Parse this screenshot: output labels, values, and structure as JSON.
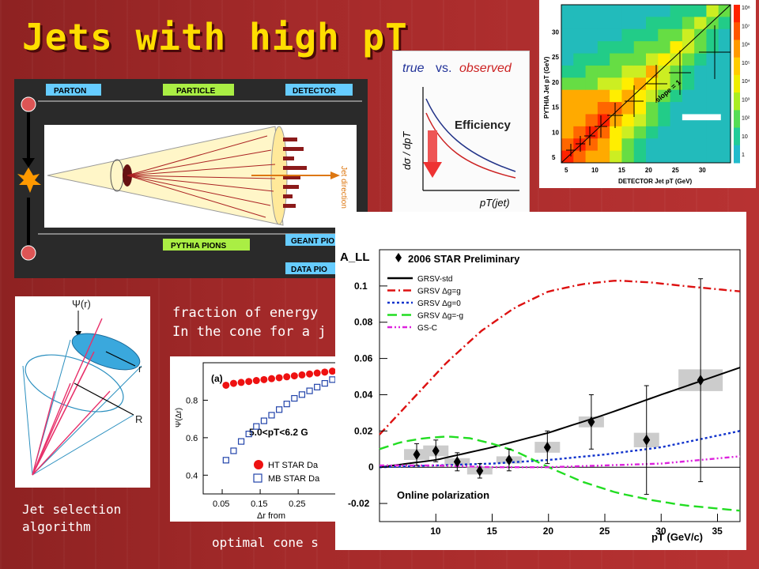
{
  "slide": {
    "title": "Jets with high pT",
    "caption_energy_line1": "fraction of energy",
    "caption_energy_line2": "In the cone for a j",
    "caption_jet_line1": "Jet selection",
    "caption_jet_line2": "algorithm",
    "caption_cone": "optimal cone s"
  },
  "jet_diagram": {
    "label_parton": "PARTON",
    "label_particle": "PARTICLE",
    "label_detector": "DETECTOR",
    "label_pythia_pions": "PYTHIA PIONS",
    "label_geant": "GEANT PIO",
    "label_data": "DATA PIO",
    "jet_direction": "Jet direction",
    "theme_color": "#2a2a2a",
    "label_color": "#66ccff"
  },
  "efficiency_panel": {
    "title_true": "true",
    "title_vs": "vs.",
    "title_observed": "observed",
    "label": "Efficiency",
    "ylabel": "dσ / dpT",
    "xlabel": "pT(jet)"
  },
  "heatmap": {
    "ylabel": "PYTHIA Jet pT (GeV)",
    "xlabel": "DETECTOR Jet pT (GeV)",
    "slope_label": "slope = 1",
    "x_ticks": [
      "5",
      "10",
      "15",
      "20",
      "25",
      "30"
    ],
    "y_ticks": [
      "5",
      "10",
      "15",
      "20",
      "25",
      "30"
    ],
    "scale_labels": [
      "10⁸",
      "10⁷",
      "10⁶",
      "10⁵",
      "10⁴",
      "10³",
      "10²",
      "10",
      "1"
    ]
  },
  "cone_diagram": {
    "psi_label": "Ψ(r)",
    "r_label": "r",
    "R_label": "R"
  },
  "psi_plot": {
    "panel_label": "(a)",
    "ylabel": "Ψ(Δr)",
    "xlabel": "Δr from",
    "range_label": "5.0<pT<6.2 G",
    "legend_ht": "HT STAR Da",
    "legend_mb": "MB STAR Da",
    "x_ticks": [
      "0.05",
      "0.15",
      "0.25"
    ],
    "y_ticks": [
      "0.4",
      "0.6",
      "0.8"
    ],
    "chart_data": {
      "type": "scatter",
      "series": [
        {
          "name": "HT STAR Da",
          "x": [
            0.06,
            0.08,
            0.1,
            0.12,
            0.14,
            0.16,
            0.18,
            0.2,
            0.22,
            0.24,
            0.26,
            0.28,
            0.3,
            0.32,
            0.34
          ],
          "y": [
            0.88,
            0.89,
            0.895,
            0.9,
            0.905,
            0.91,
            0.915,
            0.92,
            0.925,
            0.93,
            0.935,
            0.94,
            0.945,
            0.95,
            0.955
          ]
        },
        {
          "name": "MB STAR Da",
          "x": [
            0.06,
            0.08,
            0.1,
            0.12,
            0.14,
            0.16,
            0.18,
            0.2,
            0.22,
            0.24,
            0.26,
            0.28,
            0.3,
            0.32,
            0.34
          ],
          "y": [
            0.48,
            0.53,
            0.58,
            0.62,
            0.66,
            0.69,
            0.72,
            0.75,
            0.78,
            0.81,
            0.83,
            0.85,
            0.87,
            0.89,
            0.91
          ]
        }
      ],
      "xlim": [
        0.0,
        0.36
      ],
      "ylim": [
        0.3,
        1.0
      ]
    }
  },
  "all_plot": {
    "chart_data": {
      "type": "line",
      "ylabel": "A_LL",
      "xlabel": "pT (GeV/c)",
      "title": "2006 STAR Preliminary",
      "annotation": "Online polarization",
      "xlim": [
        5,
        37
      ],
      "ylim": [
        -0.03,
        0.12
      ],
      "x_ticks": [
        10,
        15,
        20,
        25,
        30,
        35
      ],
      "y_ticks": [
        -0.02,
        0,
        0.02,
        0.04,
        0.06,
        0.08,
        0.1
      ],
      "curves": [
        {
          "name": "GRSV-std",
          "color": "#000000",
          "dash": "solid",
          "x": [
            5,
            10,
            15,
            20,
            25,
            30,
            37
          ],
          "y": [
            0.0,
            0.004,
            0.011,
            0.019,
            0.029,
            0.04,
            0.055
          ]
        },
        {
          "name": "GRSV Δg=g",
          "color": "#dd1111",
          "dash": "dashdot",
          "x": [
            5,
            8,
            11,
            14,
            17,
            20,
            23,
            26,
            29,
            32,
            37
          ],
          "y": [
            0.018,
            0.038,
            0.058,
            0.075,
            0.088,
            0.097,
            0.101,
            0.103,
            0.102,
            0.1,
            0.097
          ]
        },
        {
          "name": "GRSV Δg=0",
          "color": "#1133cc",
          "dash": "dotted",
          "x": [
            5,
            10,
            15,
            20,
            25,
            30,
            37
          ],
          "y": [
            0.0,
            0.001,
            0.002,
            0.004,
            0.007,
            0.011,
            0.02
          ]
        },
        {
          "name": "GRSV Δg=-g",
          "color": "#22dd22",
          "dash": "dashed",
          "x": [
            5,
            7,
            9,
            11,
            13,
            15,
            17,
            20,
            23,
            26,
            29,
            32,
            37
          ],
          "y": [
            0.01,
            0.014,
            0.016,
            0.017,
            0.016,
            0.013,
            0.009,
            0.0,
            -0.008,
            -0.014,
            -0.018,
            -0.021,
            -0.024
          ]
        },
        {
          "name": "GS-C",
          "color": "#dd22dd",
          "dash": "dashdotdot",
          "x": [
            5,
            10,
            15,
            20,
            25,
            30,
            37
          ],
          "y": [
            0.001,
            0.001,
            0.0,
            0.0,
            0.001,
            0.002,
            0.006
          ]
        }
      ],
      "points": {
        "name": "2006 STAR Preliminary",
        "x": [
          8.3,
          10.0,
          11.9,
          13.9,
          16.5,
          19.9,
          23.8,
          28.7,
          33.5
        ],
        "y": [
          0.007,
          0.009,
          0.003,
          -0.002,
          0.004,
          0.011,
          0.025,
          0.015,
          0.048
        ],
        "err": [
          0.006,
          0.006,
          0.005,
          0.004,
          0.006,
          0.009,
          0.015,
          0.03,
          0.056
        ],
        "sys": [
          0.003,
          0.003,
          0.002,
          0.002,
          0.002,
          0.003,
          0.003,
          0.004,
          0.006
        ]
      }
    }
  }
}
